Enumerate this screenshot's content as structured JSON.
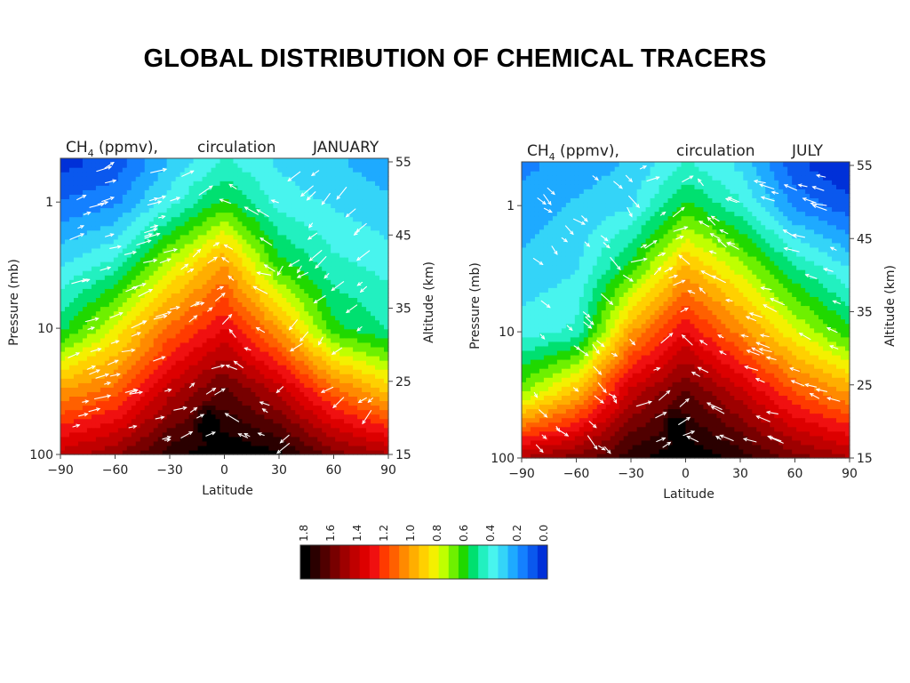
{
  "slide": {
    "title": "GLOBAL DISTRIBUTION OF CHEMICAL TRACERS"
  },
  "panels": [
    {
      "header": {
        "species": "CH",
        "subscript": "4",
        "units": " (ppmv),",
        "label": "circulation",
        "month": "JANUARY"
      },
      "xlabel": "Latitude",
      "ylabel_left": "Pressure (mb)",
      "ylabel_right": "Altitude (km)",
      "x_ticks": [
        "−90",
        "−60",
        "−30",
        "0",
        "30",
        "60",
        "90"
      ],
      "y_ticks_left": [
        "1",
        "10",
        "100"
      ],
      "y_ticks_right": [
        "55",
        "45",
        "35",
        "25",
        "15"
      ]
    },
    {
      "header": {
        "species": "CH",
        "subscript": "4",
        "units": " (ppmv),",
        "label": "circulation",
        "month": "JULY"
      },
      "xlabel": "Latitude",
      "ylabel_left": "Pressure (mb)",
      "ylabel_right": "Altitude (km)",
      "x_ticks": [
        "−90",
        "−60",
        "−30",
        "0",
        "30",
        "60",
        "90"
      ],
      "y_ticks_left": [
        "1",
        "10",
        "100"
      ],
      "y_ticks_right": [
        "55",
        "45",
        "35",
        "25",
        "15"
      ]
    }
  ],
  "colorbar": {
    "tick_labels": [
      "1.8",
      "1.6",
      "1.4",
      "1.2",
      "1.0",
      "0.8",
      "0.6",
      "0.4",
      "0.2",
      "0.0"
    ],
    "colors": [
      "#000000",
      "#2a0000",
      "#500000",
      "#780000",
      "#9e0000",
      "#c00000",
      "#dd0000",
      "#f01010",
      "#ff3a00",
      "#ff6000",
      "#ff8a00",
      "#ffae00",
      "#ffd000",
      "#f4f000",
      "#bfff00",
      "#6ef000",
      "#20d800",
      "#00e070",
      "#22f0c0",
      "#48f4ee",
      "#34d4f8",
      "#1eaaff",
      "#1480ff",
      "#0a58ee",
      "#0030d8"
    ]
  },
  "chart_data": [
    {
      "type": "heatmap",
      "title": "CH4 (ppmv), circulation JANUARY",
      "xlabel": "Latitude",
      "ylabel": "Pressure (mb)",
      "y2label": "Altitude (km)",
      "xlim": [
        -90,
        90
      ],
      "ylim": [
        100,
        0.45
      ],
      "y_scale": "log",
      "y2lim": [
        15,
        55
      ],
      "color_range": [
        0.0,
        1.8
      ],
      "color_peak": {
        "latitude": -8,
        "pressure_mb": 60,
        "value": 1.8
      },
      "arrows_overlay": true,
      "profiles": [
        {
          "latitude": -90,
          "values_by_pressure": {
            "100": 1.4,
            "30": 1.0,
            "10": 0.55,
            "3": 0.35,
            "1": 0.15,
            "0.5": 0.05
          }
        },
        {
          "latitude": -60,
          "values_by_pressure": {
            "100": 1.5,
            "30": 1.1,
            "10": 0.8,
            "3": 0.45,
            "1": 0.2,
            "0.5": 0.1
          }
        },
        {
          "latitude": -30,
          "values_by_pressure": {
            "100": 1.7,
            "30": 1.4,
            "10": 1.1,
            "3": 0.75,
            "1": 0.4,
            "0.5": 0.3
          }
        },
        {
          "latitude": 0,
          "values_by_pressure": {
            "100": 1.8,
            "30": 1.6,
            "10": 1.3,
            "3": 1.0,
            "1": 0.6,
            "0.5": 0.45
          }
        },
        {
          "latitude": 30,
          "values_by_pressure": {
            "100": 1.75,
            "30": 1.4,
            "10": 1.0,
            "3": 0.6,
            "1": 0.4,
            "0.5": 0.35
          }
        },
        {
          "latitude": 60,
          "values_by_pressure": {
            "100": 1.55,
            "30": 1.1,
            "10": 0.6,
            "3": 0.45,
            "1": 0.35,
            "0.5": 0.3
          }
        },
        {
          "latitude": 90,
          "values_by_pressure": {
            "100": 1.45,
            "30": 0.9,
            "10": 0.5,
            "3": 0.4,
            "1": 0.3,
            "0.5": 0.25
          }
        }
      ]
    },
    {
      "type": "heatmap",
      "title": "CH4 (ppmv), circulation JULY",
      "xlabel": "Latitude",
      "ylabel": "Pressure (mb)",
      "y2label": "Altitude (km)",
      "xlim": [
        -90,
        90
      ],
      "ylim": [
        100,
        0.45
      ],
      "y_scale": "log",
      "y2lim": [
        15,
        55
      ],
      "color_range": [
        0.0,
        1.8
      ],
      "color_peak": {
        "latitude": -5,
        "pressure_mb": 60,
        "value": 1.8
      },
      "arrows_overlay": true,
      "profiles": [
        {
          "latitude": -90,
          "values_by_pressure": {
            "100": 1.45,
            "30": 0.7,
            "10": 0.4,
            "3": 0.3,
            "1": 0.25,
            "0.5": 0.2
          }
        },
        {
          "latitude": -60,
          "values_by_pressure": {
            "100": 1.55,
            "30": 0.95,
            "10": 0.45,
            "3": 0.35,
            "1": 0.3,
            "0.5": 0.25
          }
        },
        {
          "latitude": -30,
          "values_by_pressure": {
            "100": 1.7,
            "30": 1.4,
            "10": 1.0,
            "3": 0.6,
            "1": 0.35,
            "0.5": 0.3
          }
        },
        {
          "latitude": 0,
          "values_by_pressure": {
            "100": 1.8,
            "30": 1.6,
            "10": 1.3,
            "3": 0.95,
            "1": 0.6,
            "0.5": 0.45
          }
        },
        {
          "latitude": 30,
          "values_by_pressure": {
            "100": 1.7,
            "30": 1.4,
            "10": 1.05,
            "3": 0.75,
            "1": 0.45,
            "0.5": 0.35
          }
        },
        {
          "latitude": 60,
          "values_by_pressure": {
            "100": 1.55,
            "30": 1.15,
            "10": 0.8,
            "3": 0.5,
            "1": 0.2,
            "0.5": 0.1
          }
        },
        {
          "latitude": 90,
          "values_by_pressure": {
            "100": 1.45,
            "30": 1.0,
            "10": 0.6,
            "3": 0.35,
            "1": 0.1,
            "0.5": 0.0
          }
        }
      ]
    }
  ]
}
